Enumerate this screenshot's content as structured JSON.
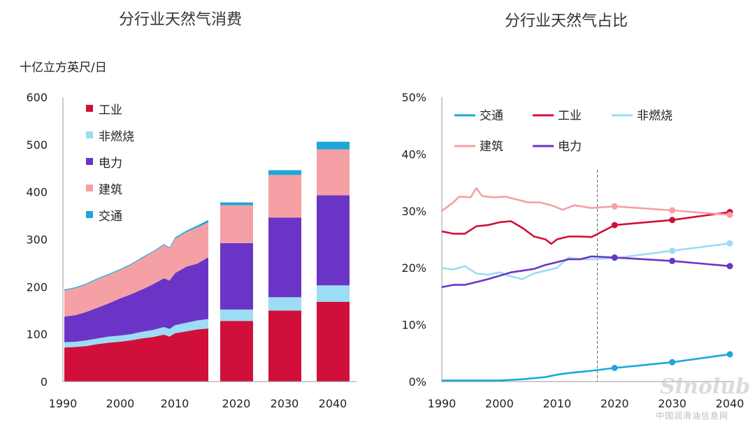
{
  "chart_data": [
    {
      "type": "area",
      "title": "分行业天然气消费",
      "ylabel": "十亿立方英尺/日",
      "ylim": [
        0,
        600
      ],
      "yticks": [
        0,
        100,
        200,
        300,
        400,
        500,
        600
      ],
      "xticks": [
        "1990",
        "2000",
        "2010",
        "2020",
        "2030",
        "2040"
      ],
      "stack_order": [
        "工业",
        "非燃烧",
        "电力",
        "建筑",
        "交通"
      ],
      "legend_order": [
        "工业",
        "非燃烧",
        "电力",
        "建筑",
        "交通"
      ],
      "legend_position": "top-left",
      "colors": {
        "工业": "#d0103a",
        "非燃烧": "#9ddcf5",
        "电力": "#6a35c6",
        "建筑": "#f5a0a4",
        "交通": "#1da7db"
      },
      "historical": {
        "years": [
          1990,
          1992,
          1994,
          1996,
          1998,
          2000,
          2002,
          2004,
          2006,
          2008,
          2009,
          2010,
          2012,
          2014,
          2016
        ],
        "series": [
          {
            "name": "工业",
            "values": [
              72,
              73,
              75,
              79,
              82,
              84,
              87,
              91,
              94,
              99,
              95,
              102,
              106,
              110,
              112
            ]
          },
          {
            "name": "非燃烧",
            "values": [
              11,
              11,
              12,
              12,
              13,
              13,
              13,
              14,
              15,
              16,
              16,
              17,
              18,
              19,
              20
            ]
          },
          {
            "name": "电力",
            "values": [
              54,
              56,
              60,
              65,
              70,
              78,
              84,
              89,
              96,
              103,
              102,
              110,
              118,
              120,
              130
            ]
          },
          {
            "name": "建筑",
            "values": [
              55,
              57,
              58,
              60,
              60,
              60,
              62,
              66,
              68,
              70,
              68,
              72,
              73,
              76,
              74
            ]
          },
          {
            "name": "交通",
            "values": [
              2,
              2,
              2,
              2,
              2,
              2,
              2,
              2,
              2,
              2,
              2,
              3,
              3,
              4,
              5
            ]
          }
        ]
      },
      "projection": {
        "categories": [
          "2020",
          "2030",
          "2040"
        ],
        "series": [
          {
            "name": "工业",
            "values": [
              128,
              150,
              168
            ]
          },
          {
            "name": "非燃烧",
            "values": [
              24,
              28,
              35
            ]
          },
          {
            "name": "电力",
            "values": [
              140,
              168,
              190
            ]
          },
          {
            "name": "建筑",
            "values": [
              80,
              90,
              97
            ]
          },
          {
            "name": "交通",
            "values": [
              6,
              10,
              16
            ]
          }
        ]
      }
    },
    {
      "type": "line",
      "title": "分行业天然气占比",
      "ylim": [
        0,
        50
      ],
      "yticks": [
        "0%",
        "10%",
        "20%",
        "30%",
        "40%",
        "50%"
      ],
      "xlim": [
        1990,
        2040
      ],
      "xticks": [
        "1990",
        "2000",
        "2010",
        "2020",
        "2030",
        "2040"
      ],
      "projection_start": 2017,
      "legend_position": "top-left",
      "series": [
        {
          "name": "交通",
          "color": "#1da7db",
          "x": [
            1990,
            1995,
            2000,
            2004,
            2008,
            2010,
            2012,
            2014,
            2016,
            2020,
            2030,
            2040
          ],
          "y": [
            0.2,
            0.2,
            0.2,
            0.4,
            0.8,
            1.2,
            1.5,
            1.7,
            1.9,
            2.4,
            3.4,
            4.8
          ],
          "markers": [
            [
              2020,
              2.4
            ],
            [
              2030,
              3.4
            ],
            [
              2040,
              4.8
            ]
          ]
        },
        {
          "name": "工业",
          "color": "#d0103a",
          "x": [
            1990,
            1992,
            1994,
            1996,
            1998,
            2000,
            2002,
            2004,
            2006,
            2008,
            2009,
            2010,
            2012,
            2014,
            2016,
            2020,
            2030,
            2040
          ],
          "y": [
            26.4,
            26.0,
            26.0,
            27.3,
            27.5,
            28.0,
            28.2,
            27.0,
            25.5,
            25.0,
            24.2,
            25.0,
            25.5,
            25.5,
            25.4,
            27.5,
            28.4,
            29.8
          ],
          "markers": [
            [
              2020,
              27.5
            ],
            [
              2030,
              28.4
            ],
            [
              2040,
              29.8
            ]
          ]
        },
        {
          "name": "非燃烧",
          "color": "#9ddcf5",
          "x": [
            1990,
            1992,
            1994,
            1996,
            1998,
            2000,
            2002,
            2004,
            2006,
            2008,
            2010,
            2012,
            2014,
            2016,
            2020,
            2030,
            2040
          ],
          "y": [
            20.0,
            19.7,
            20.3,
            19.0,
            18.8,
            19.2,
            18.5,
            18.0,
            19.0,
            19.5,
            20.0,
            21.8,
            21.5,
            21.5,
            21.7,
            23.0,
            24.3
          ],
          "markers": [
            [
              2020,
              21.7
            ],
            [
              2030,
              23.0
            ],
            [
              2040,
              24.3
            ]
          ]
        },
        {
          "name": "建筑",
          "color": "#f5a0a4",
          "x": [
            1990,
            1992,
            1993,
            1995,
            1996,
            1997,
            1999,
            2001,
            2003,
            2005,
            2007,
            2009,
            2011,
            2013,
            2016,
            2020,
            2030,
            2040
          ],
          "y": [
            30.0,
            31.5,
            32.5,
            32.4,
            34.0,
            32.6,
            32.4,
            32.5,
            32.0,
            31.5,
            31.5,
            31.0,
            30.2,
            31.0,
            30.5,
            30.8,
            30.1,
            29.3
          ],
          "markers": [
            [
              2020,
              30.8
            ],
            [
              2030,
              30.1
            ],
            [
              2040,
              29.3
            ]
          ]
        },
        {
          "name": "电力",
          "color": "#6a35c6",
          "x": [
            1990,
            1992,
            1994,
            1996,
            1998,
            2000,
            2002,
            2004,
            2006,
            2008,
            2010,
            2012,
            2014,
            2016,
            2020,
            2030,
            2040
          ],
          "y": [
            16.6,
            17.0,
            17.0,
            17.5,
            18.0,
            18.6,
            19.2,
            19.5,
            19.8,
            20.5,
            21.0,
            21.5,
            21.5,
            22.0,
            21.8,
            21.2,
            20.3
          ],
          "markers": [
            [
              2020,
              21.8
            ],
            [
              2030,
              21.2
            ],
            [
              2040,
              20.3
            ]
          ]
        }
      ],
      "legend_rows": [
        [
          "交通",
          "工业",
          "非燃烧"
        ],
        [
          "建筑",
          "电力"
        ]
      ]
    }
  ],
  "watermark": {
    "logo_text": "Sinolub",
    "caption": "中国润滑油信息网"
  }
}
